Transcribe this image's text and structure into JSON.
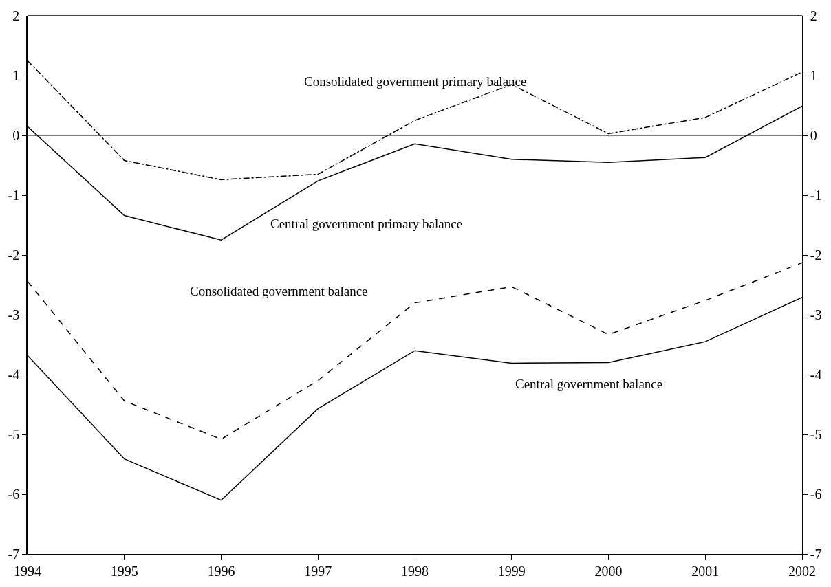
{
  "chart_data": {
    "type": "line",
    "x": [
      1994,
      1995,
      1996,
      1997,
      1998,
      1999,
      2000,
      2001,
      2002
    ],
    "xlim": [
      1994,
      2002
    ],
    "xticks": [
      1994,
      1995,
      1996,
      1997,
      1998,
      1999,
      2000,
      2001,
      2002
    ],
    "ylim": [
      -7,
      2
    ],
    "yticks": [
      -7,
      -6,
      -5,
      -4,
      -3,
      -2,
      -1,
      0,
      1,
      2
    ],
    "y2lim": [
      -7,
      2
    ],
    "y2ticks": [
      -7,
      -6,
      -5,
      -4,
      -3,
      -2,
      -1,
      0,
      1,
      2
    ],
    "marker": "none",
    "ref_lines": [
      {
        "axis": "y",
        "value": 0,
        "color": "#000000",
        "line_style": "solid"
      }
    ],
    "series": [
      {
        "name": "Consolidated government primary balance",
        "color": "#000000",
        "line_style": "dashdot",
        "values": [
          1.25,
          -0.42,
          -0.74,
          -0.65,
          0.25,
          0.85,
          0.03,
          0.3,
          1.06
        ]
      },
      {
        "name": "Central government primary balance",
        "color": "#000000",
        "line_style": "solid",
        "values": [
          0.15,
          -1.34,
          -1.75,
          -0.76,
          -0.14,
          -0.4,
          -0.45,
          -0.37,
          0.49
        ]
      },
      {
        "name": "Consolidated government balance",
        "color": "#000000",
        "line_style": "dashed",
        "values": [
          -2.44,
          -4.44,
          -5.08,
          -4.1,
          -2.8,
          -2.53,
          -3.33,
          -2.76,
          -2.13
        ]
      },
      {
        "name": "Central government balance",
        "color": "#000000",
        "line_style": "solid",
        "values": [
          -3.68,
          -5.41,
          -6.1,
          -4.57,
          -3.6,
          -3.81,
          -3.8,
          -3.45,
          -2.71
        ]
      }
    ]
  }
}
